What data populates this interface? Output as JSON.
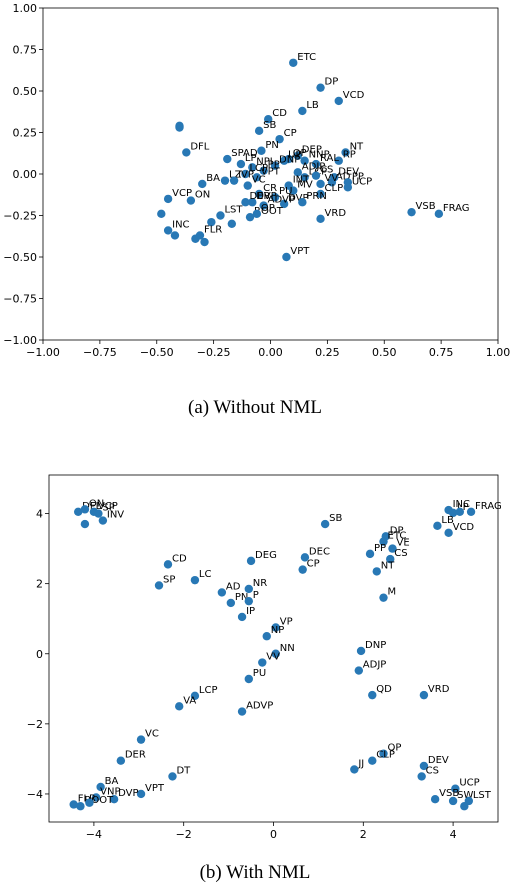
{
  "figure": {
    "caption_a": "(a) Without NML",
    "caption_b": "(b) With NML"
  },
  "chart_data": [
    {
      "type": "scatter",
      "title": "",
      "xlabel": "",
      "ylabel": "",
      "xlim": [
        -1.0,
        1.0
      ],
      "ylim": [
        -1.0,
        1.0
      ],
      "xticks": [
        -1.0,
        -0.75,
        -0.5,
        -0.25,
        0.0,
        0.25,
        0.5,
        0.75,
        1.0
      ],
      "yticks": [
        -1.0,
        -0.75,
        -0.5,
        -0.25,
        0.0,
        0.25,
        0.5,
        0.75,
        1.0
      ],
      "xtick_labels": [
        "−1.00",
        "−0.75",
        "−0.50",
        "−0.25",
        "0.00",
        "0.25",
        "0.50",
        "0.75",
        "1.00"
      ],
      "ytick_labels": [
        "−1.00",
        "−0.75",
        "−0.50",
        "−0.25",
        "0.00",
        "0.25",
        "0.50",
        "0.75",
        "1.00"
      ],
      "grid": false,
      "marker_color": "#2878b5",
      "points": [
        {
          "label": "ETC",
          "x": 0.1,
          "y": 0.67
        },
        {
          "label": "DP",
          "x": 0.22,
          "y": 0.52
        },
        {
          "label": "VCD",
          "x": 0.3,
          "y": 0.44
        },
        {
          "label": "LB",
          "x": 0.14,
          "y": 0.38
        },
        {
          "label": "CD",
          "x": -0.01,
          "y": 0.33
        },
        {
          "label": "SB",
          "x": -0.05,
          "y": 0.26
        },
        {
          "label": "",
          "x": -0.4,
          "y": 0.29
        },
        {
          "label": "",
          "x": -0.4,
          "y": 0.28
        },
        {
          "label": "CP",
          "x": 0.04,
          "y": 0.21
        },
        {
          "label": "PN",
          "x": -0.04,
          "y": 0.14
        },
        {
          "label": "DFL",
          "x": -0.37,
          "y": 0.13
        },
        {
          "label": "NT",
          "x": 0.33,
          "y": 0.13
        },
        {
          "label": "SPAD",
          "x": -0.19,
          "y": 0.09
        },
        {
          "label": "DEP",
          "x": 0.12,
          "y": 0.11
        },
        {
          "label": "QP",
          "x": 0.08,
          "y": 0.09
        },
        {
          "label": "UP",
          "x": 0.06,
          "y": 0.08
        },
        {
          "label": "NNP",
          "x": 0.15,
          "y": 0.08
        },
        {
          "label": "RP",
          "x": 0.3,
          "y": 0.08
        },
        {
          "label": "RAL",
          "x": 0.2,
          "y": 0.06
        },
        {
          "label": "LP",
          "x": -0.13,
          "y": 0.06
        },
        {
          "label": "NPI",
          "x": -0.08,
          "y": 0.04
        },
        {
          "label": "DNP",
          "x": 0.02,
          "y": 0.05
        },
        {
          "label": "PP",
          "x": -0.03,
          "y": 0.02
        },
        {
          "label": "ADJP",
          "x": 0.12,
          "y": 0.01
        },
        {
          "label": "LCP",
          "x": -0.11,
          "y": 0.0
        },
        {
          "label": "VPT",
          "x": -0.06,
          "y": -0.02
        },
        {
          "label": "LCP",
          "x": 0.15,
          "y": -0.02
        },
        {
          "label": "CS",
          "x": 0.2,
          "y": -0.01
        },
        {
          "label": "BA",
          "x": -0.3,
          "y": -0.06
        },
        {
          "label": "LZ",
          "x": -0.2,
          "y": -0.04
        },
        {
          "label": "IVP",
          "x": -0.16,
          "y": -0.04
        },
        {
          "label": "VC",
          "x": -0.1,
          "y": -0.07
        },
        {
          "label": "AD",
          "x": 0.27,
          "y": -0.05
        },
        {
          "label": "PP",
          "x": 0.34,
          "y": -0.05
        },
        {
          "label": "DEV",
          "x": 0.28,
          "y": -0.02
        },
        {
          "label": "UCP",
          "x": 0.34,
          "y": -0.08
        },
        {
          "label": "VV",
          "x": 0.22,
          "y": -0.06
        },
        {
          "label": "INT",
          "x": 0.08,
          "y": -0.07
        },
        {
          "label": "MV",
          "x": 0.1,
          "y": -0.1
        },
        {
          "label": "CLP",
          "x": 0.22,
          "y": -0.12
        },
        {
          "label": "VCP",
          "x": -0.45,
          "y": -0.15
        },
        {
          "label": "ON",
          "x": -0.35,
          "y": -0.16
        },
        {
          "label": "CR",
          "x": -0.05,
          "y": -0.12
        },
        {
          "label": "PU",
          "x": 0.02,
          "y": -0.14
        },
        {
          "label": "DVP",
          "x": -0.08,
          "y": -0.17
        },
        {
          "label": "DVP",
          "x": 0.06,
          "y": -0.18
        },
        {
          "label": "PRN",
          "x": 0.14,
          "y": -0.17
        },
        {
          "label": "ADVP",
          "x": -0.03,
          "y": -0.19
        },
        {
          "label": "DER",
          "x": -0.11,
          "y": -0.17
        },
        {
          "label": "",
          "x": -0.48,
          "y": -0.24
        },
        {
          "label": "",
          "x": -0.26,
          "y": -0.29
        },
        {
          "label": "LST",
          "x": -0.22,
          "y": -0.25
        },
        {
          "label": "ROOT",
          "x": -0.09,
          "y": -0.26
        },
        {
          "label": "",
          "x": -0.17,
          "y": -0.3
        },
        {
          "label": "OP",
          "x": -0.06,
          "y": -0.24
        },
        {
          "label": "VRD",
          "x": 0.22,
          "y": -0.27
        },
        {
          "label": "INC",
          "x": -0.45,
          "y": -0.34
        },
        {
          "label": "",
          "x": -0.42,
          "y": -0.37
        },
        {
          "label": "FLR",
          "x": -0.31,
          "y": -0.37
        },
        {
          "label": "",
          "x": -0.33,
          "y": -0.39
        },
        {
          "label": "",
          "x": -0.29,
          "y": -0.41
        },
        {
          "label": "VSB",
          "x": 0.62,
          "y": -0.23
        },
        {
          "label": "FRAG",
          "x": 0.74,
          "y": -0.24
        },
        {
          "label": "VPT",
          "x": 0.07,
          "y": -0.5
        }
      ]
    },
    {
      "type": "scatter",
      "title": "",
      "xlabel": "",
      "ylabel": "",
      "xlim": [
        -5.0,
        5.0
      ],
      "ylim": [
        -4.8,
        5.1
      ],
      "xticks": [
        -4,
        -2,
        0,
        2,
        4
      ],
      "yticks": [
        -4,
        -2,
        0,
        2,
        4
      ],
      "xtick_labels": [
        "−4",
        "−2",
        "0",
        "2",
        "4"
      ],
      "ytick_labels": [
        "−4",
        "−2",
        "0",
        "2",
        "4"
      ],
      "grid": false,
      "marker_color": "#2878b5",
      "points": [
        {
          "label": "DFL",
          "x": -4.35,
          "y": 4.05
        },
        {
          "label": "ON",
          "x": -4.2,
          "y": 4.12
        },
        {
          "label": "VCP",
          "x": -4.0,
          "y": 4.05
        },
        {
          "label": "SP",
          "x": -3.9,
          "y": 4.0
        },
        {
          "label": "INV",
          "x": -3.8,
          "y": 3.8
        },
        {
          "label": "",
          "x": -4.2,
          "y": 3.7
        },
        {
          "label": "SB",
          "x": 1.15,
          "y": 3.7
        },
        {
          "label": "INC",
          "x": 3.9,
          "y": 4.1
        },
        {
          "label": "LP",
          "x": 4.0,
          "y": 4.02
        },
        {
          "label": "FRAG",
          "x": 4.4,
          "y": 4.05
        },
        {
          "label": "",
          "x": 4.15,
          "y": 4.05
        },
        {
          "label": "LB",
          "x": 3.65,
          "y": 3.65
        },
        {
          "label": "VCD",
          "x": 3.9,
          "y": 3.45
        },
        {
          "label": "DP",
          "x": 2.5,
          "y": 3.35
        },
        {
          "label": "ETC",
          "x": 2.45,
          "y": 3.2
        },
        {
          "label": "VE",
          "x": 2.65,
          "y": 3.0
        },
        {
          "label": "PP",
          "x": 2.15,
          "y": 2.85
        },
        {
          "label": "CS",
          "x": 2.6,
          "y": 2.7
        },
        {
          "label": "NT",
          "x": 2.3,
          "y": 2.35
        },
        {
          "label": "M",
          "x": 2.45,
          "y": 1.6
        },
        {
          "label": "CD",
          "x": -2.35,
          "y": 2.55
        },
        {
          "label": "DEG",
          "x": -0.5,
          "y": 2.65
        },
        {
          "label": "DEC",
          "x": 0.7,
          "y": 2.75
        },
        {
          "label": "CP",
          "x": 0.65,
          "y": 2.4
        },
        {
          "label": "SP",
          "x": -2.55,
          "y": 1.95
        },
        {
          "label": "LC",
          "x": -1.75,
          "y": 2.1
        },
        {
          "label": "AD",
          "x": -1.15,
          "y": 1.75
        },
        {
          "label": "NR",
          "x": -0.55,
          "y": 1.85
        },
        {
          "label": "PN",
          "x": -0.95,
          "y": 1.45
        },
        {
          "label": "P",
          "x": -0.55,
          "y": 1.5
        },
        {
          "label": "IP",
          "x": -0.7,
          "y": 1.05
        },
        {
          "label": "VP",
          "x": 0.05,
          "y": 0.75
        },
        {
          "label": "NP",
          "x": -0.15,
          "y": 0.5
        },
        {
          "label": "NN",
          "x": 0.05,
          "y": 0.0
        },
        {
          "label": "VV",
          "x": -0.25,
          "y": -0.25
        },
        {
          "label": "PU",
          "x": -0.55,
          "y": -0.72
        },
        {
          "label": "DNP",
          "x": 1.95,
          "y": 0.08
        },
        {
          "label": "ADJP",
          "x": 1.9,
          "y": -0.48
        },
        {
          "label": "QD",
          "x": 2.2,
          "y": -1.18
        },
        {
          "label": "VRD",
          "x": 3.35,
          "y": -1.18
        },
        {
          "label": "LCP",
          "x": -1.75,
          "y": -1.2
        },
        {
          "label": "VA",
          "x": -2.1,
          "y": -1.5
        },
        {
          "label": "ADVP",
          "x": -0.7,
          "y": -1.65
        },
        {
          "label": "VC",
          "x": -2.95,
          "y": -2.45
        },
        {
          "label": "DER",
          "x": -3.4,
          "y": -3.05
        },
        {
          "label": "DT",
          "x": -2.25,
          "y": -3.5
        },
        {
          "label": "QP",
          "x": 2.45,
          "y": -2.85
        },
        {
          "label": "CLP",
          "x": 2.2,
          "y": -3.05
        },
        {
          "label": "JJ",
          "x": 1.8,
          "y": -3.3
        },
        {
          "label": "DEV",
          "x": 3.35,
          "y": -3.2
        },
        {
          "label": "CS",
          "x": 3.3,
          "y": -3.5
        },
        {
          "label": "UCP",
          "x": 4.05,
          "y": -3.85
        },
        {
          "label": "VSB",
          "x": 3.6,
          "y": -4.15
        },
        {
          "label": "SW",
          "x": 4.0,
          "y": -4.2
        },
        {
          "label": "LST",
          "x": 4.35,
          "y": -4.2
        },
        {
          "label": "",
          "x": 4.25,
          "y": -4.35
        },
        {
          "label": "BA",
          "x": -3.85,
          "y": -3.8
        },
        {
          "label": "VPT",
          "x": -2.95,
          "y": -4.0
        },
        {
          "label": "DVP",
          "x": -3.55,
          "y": -4.15
        },
        {
          "label": "VNP",
          "x": -3.95,
          "y": -4.1
        },
        {
          "label": "FLR",
          "x": -4.45,
          "y": -4.3
        },
        {
          "label": "ROOT",
          "x": -4.3,
          "y": -4.35
        },
        {
          "label": "",
          "x": -4.1,
          "y": -4.25
        }
      ]
    }
  ]
}
